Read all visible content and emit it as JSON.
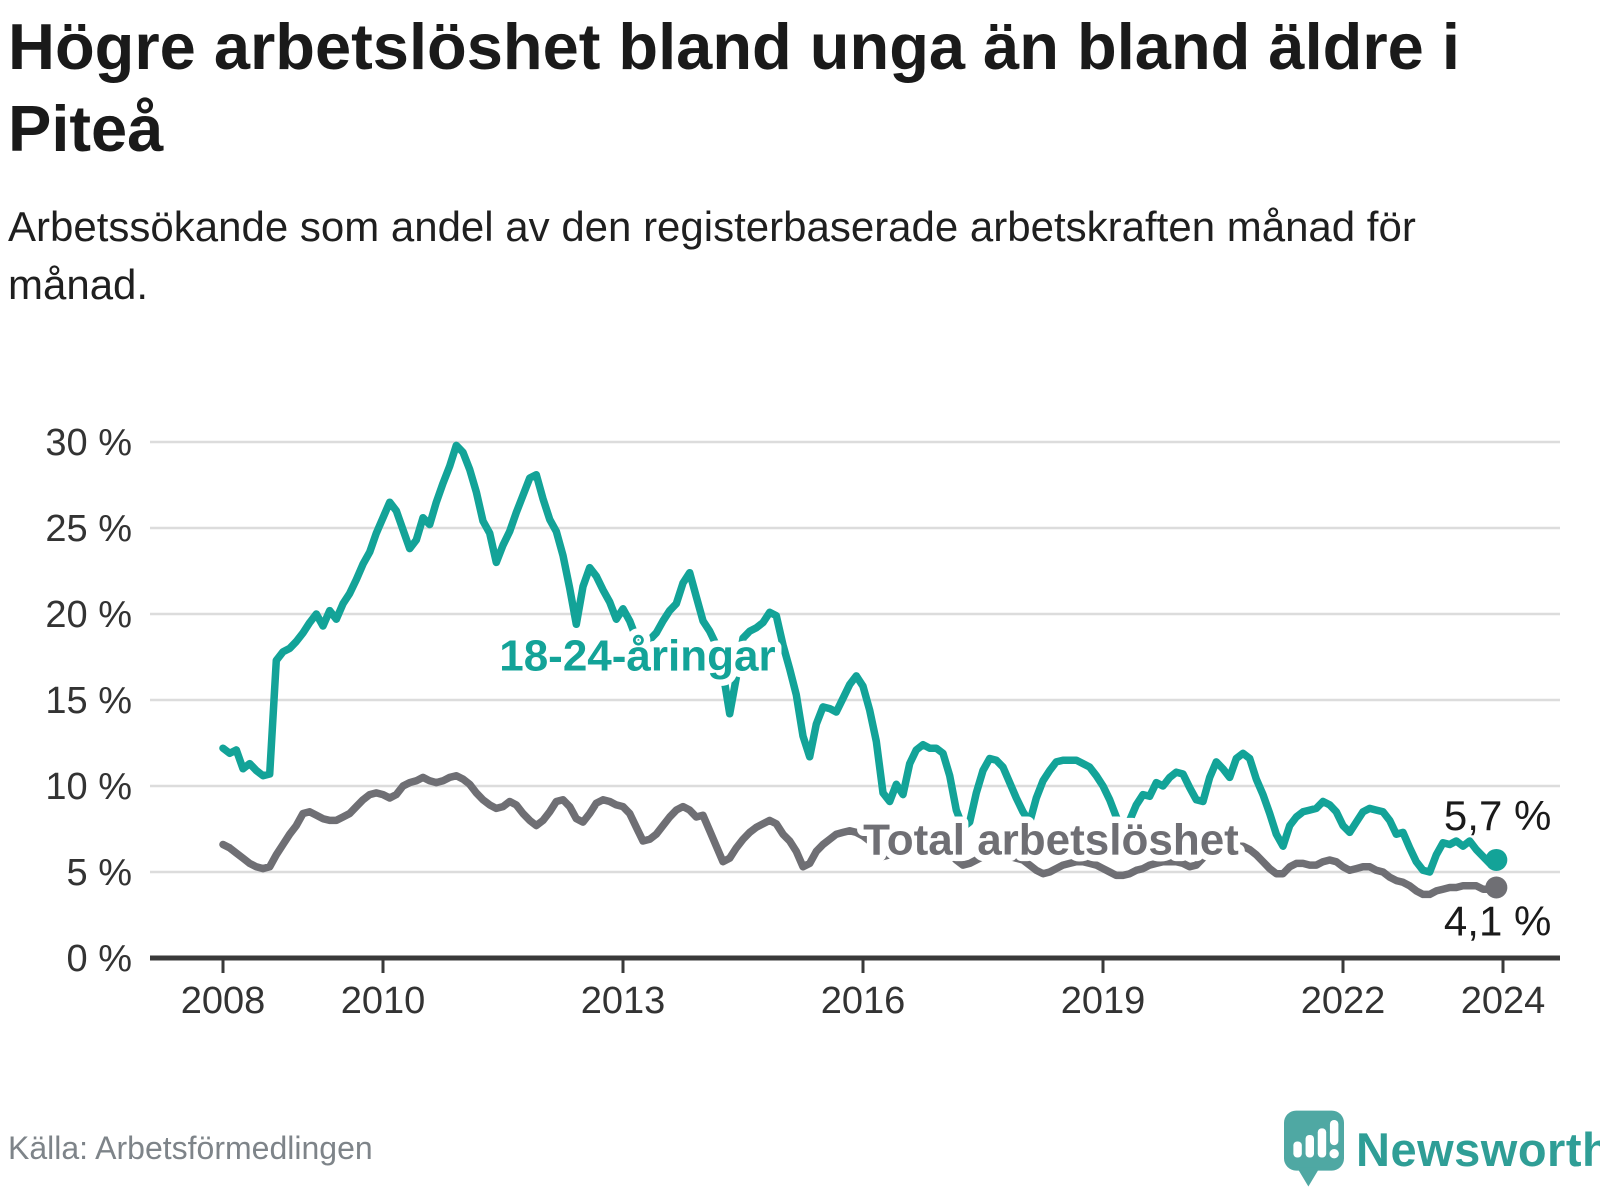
{
  "header": {
    "title": "Högre arbetslöshet bland unga än bland äldre i Piteå",
    "subtitle": "Arbetssökande som andel av den registerbaserade arbetskraften månad för månad."
  },
  "footer": {
    "source": "Källa: Arbetsförmedlingen",
    "brand": "Newsworthy"
  },
  "colors": {
    "youth_line": "#13a398",
    "total_line": "#6f6f74",
    "grid": "#dcdcdc",
    "axis": "#3a3a3a",
    "tick_text": "#333333",
    "value_text": "#1a1a1a",
    "halo": "#ffffff",
    "brand_bubble": "#4fa8a3",
    "brand_text": "#2f9e96"
  },
  "chart_data": {
    "type": "line",
    "title": "Högre arbetslöshet bland unga än bland äldre i Piteå",
    "subtitle": "Arbetssökande som andel av den registerbaserade arbetskraften månad för månad.",
    "xlabel": "",
    "ylabel": "",
    "grid": true,
    "legend_position": "inline-annotations",
    "xlim": [
      2007.1,
      2024.7
    ],
    "ylim": [
      0,
      30
    ],
    "y_ticks": [
      {
        "value": 0,
        "label": "0 %"
      },
      {
        "value": 5,
        "label": "5 %"
      },
      {
        "value": 10,
        "label": "10 %"
      },
      {
        "value": 15,
        "label": "15 %"
      },
      {
        "value": 20,
        "label": "20 %"
      },
      {
        "value": 25,
        "label": "25 %"
      },
      {
        "value": 30,
        "label": "30 %"
      }
    ],
    "x_ticks": [
      {
        "value": 2008,
        "label": "2008"
      },
      {
        "value": 2010,
        "label": "2010"
      },
      {
        "value": 2013,
        "label": "2013"
      },
      {
        "value": 2016,
        "label": "2016"
      },
      {
        "value": 2019,
        "label": "2019"
      },
      {
        "value": 2022,
        "label": "2022"
      },
      {
        "value": 2024,
        "label": "2024"
      }
    ],
    "annotations": [
      {
        "text": "18-24-åringar",
        "x": 2013.18,
        "y": 17.6,
        "series": "youth",
        "anchor": "middle"
      },
      {
        "text": "Total arbetslöshet",
        "x": 2018.35,
        "y": 6.9,
        "series": "total",
        "anchor": "middle"
      }
    ],
    "series": [
      {
        "id": "youth",
        "name": "18-24-åringar",
        "unit": "%",
        "x_start": 2008.0,
        "x_step_months": 1,
        "end_label": "5,7 %",
        "end_label_side": "above",
        "end_value": 5.7,
        "values": [
          12.2,
          11.9,
          12.1,
          11.0,
          11.3,
          10.9,
          10.6,
          10.7,
          17.3,
          17.8,
          18.0,
          18.4,
          18.9,
          19.5,
          20.0,
          19.3,
          20.2,
          19.7,
          20.6,
          21.2,
          22.0,
          22.9,
          23.6,
          24.7,
          25.6,
          26.5,
          26.0,
          24.9,
          23.8,
          24.3,
          25.6,
          25.2,
          26.5,
          27.6,
          28.6,
          29.8,
          29.4,
          28.4,
          27.1,
          25.4,
          24.7,
          23.0,
          24.0,
          24.8,
          25.9,
          26.9,
          27.9,
          28.1,
          26.7,
          25.5,
          24.8,
          23.4,
          21.5,
          19.4,
          21.6,
          22.7,
          22.2,
          21.4,
          20.7,
          19.7,
          20.3,
          19.6,
          18.6,
          17.9,
          18.5,
          18.9,
          19.6,
          20.2,
          20.6,
          21.8,
          22.4,
          21.0,
          19.6,
          19.0,
          18.2,
          16.6,
          14.2,
          16.3,
          18.6,
          19.0,
          19.2,
          19.5,
          20.1,
          19.9,
          18.2,
          16.8,
          15.3,
          12.9,
          11.7,
          13.6,
          14.6,
          14.5,
          14.3,
          15.1,
          15.9,
          16.4,
          15.8,
          14.4,
          12.6,
          9.6,
          9.1,
          10.1,
          9.5,
          11.3,
          12.1,
          12.4,
          12.2,
          12.2,
          11.9,
          10.6,
          8.6,
          7.6,
          7.9,
          9.6,
          10.9,
          11.6,
          11.5,
          11.1,
          10.2,
          9.3,
          8.5,
          7.9,
          9.3,
          10.3,
          10.9,
          11.4,
          11.5,
          11.5,
          11.5,
          11.3,
          11.1,
          10.6,
          10.0,
          9.2,
          8.2,
          7.2,
          8.0,
          8.9,
          9.5,
          9.4,
          10.2,
          10.0,
          10.5,
          10.8,
          10.7,
          9.9,
          9.2,
          9.1,
          10.5,
          11.4,
          11.0,
          10.5,
          11.6,
          11.9,
          11.6,
          10.4,
          9.5,
          8.4,
          7.2,
          6.5,
          7.7,
          8.2,
          8.5,
          8.6,
          8.7,
          9.1,
          8.9,
          8.5,
          7.7,
          7.3,
          7.9,
          8.5,
          8.7,
          8.6,
          8.5,
          8.0,
          7.2,
          7.3,
          6.4,
          5.6,
          5.1,
          5.0,
          6.0,
          6.7,
          6.6,
          6.8,
          6.5,
          6.8,
          6.3,
          5.9,
          5.5,
          5.7
        ]
      },
      {
        "id": "total",
        "name": "Total arbetslöshet",
        "unit": "%",
        "x_start": 2008.0,
        "x_step_months": 1,
        "end_label": "4,1 %",
        "end_label_side": "below",
        "end_value": 4.1,
        "values": [
          6.6,
          6.4,
          6.1,
          5.8,
          5.5,
          5.3,
          5.2,
          5.3,
          6.0,
          6.6,
          7.2,
          7.7,
          8.4,
          8.5,
          8.3,
          8.1,
          8.0,
          8.0,
          8.2,
          8.4,
          8.8,
          9.2,
          9.5,
          9.6,
          9.5,
          9.3,
          9.5,
          10.0,
          10.2,
          10.3,
          10.5,
          10.3,
          10.2,
          10.3,
          10.5,
          10.6,
          10.4,
          10.1,
          9.6,
          9.2,
          8.9,
          8.7,
          8.8,
          9.1,
          8.9,
          8.4,
          8.0,
          7.7,
          8.0,
          8.5,
          9.1,
          9.2,
          8.8,
          8.1,
          7.9,
          8.4,
          9.0,
          9.2,
          9.1,
          8.9,
          8.8,
          8.4,
          7.6,
          6.8,
          6.9,
          7.2,
          7.7,
          8.2,
          8.6,
          8.8,
          8.6,
          8.2,
          8.3,
          7.4,
          6.5,
          5.6,
          5.8,
          6.4,
          6.9,
          7.3,
          7.6,
          7.8,
          8.0,
          7.8,
          7.2,
          6.8,
          6.2,
          5.3,
          5.5,
          6.2,
          6.6,
          6.9,
          7.2,
          7.3,
          7.4,
          7.3,
          7.1,
          6.8,
          6.3,
          5.9,
          6.0,
          6.2,
          6.4,
          6.5,
          6.6,
          6.6,
          6.6,
          6.5,
          6.4,
          6.1,
          5.7,
          5.4,
          5.5,
          5.7,
          5.9,
          6.0,
          6.1,
          6.0,
          5.9,
          5.8,
          5.7,
          5.4,
          5.1,
          4.9,
          5.0,
          5.2,
          5.4,
          5.5,
          5.6,
          5.6,
          5.5,
          5.4,
          5.2,
          5.0,
          4.8,
          4.8,
          4.9,
          5.1,
          5.2,
          5.4,
          5.5,
          5.6,
          5.6,
          5.6,
          5.5,
          5.3,
          5.4,
          5.8,
          6.1,
          6.3,
          6.4,
          6.4,
          6.5,
          6.5,
          6.3,
          6.0,
          5.6,
          5.2,
          4.9,
          4.9,
          5.3,
          5.5,
          5.5,
          5.4,
          5.4,
          5.6,
          5.7,
          5.6,
          5.3,
          5.1,
          5.2,
          5.3,
          5.3,
          5.1,
          5.0,
          4.7,
          4.5,
          4.4,
          4.2,
          3.9,
          3.7,
          3.7,
          3.9,
          4.0,
          4.1,
          4.1,
          4.2,
          4.2,
          4.2,
          4.0,
          4.0,
          4.1
        ]
      }
    ]
  }
}
